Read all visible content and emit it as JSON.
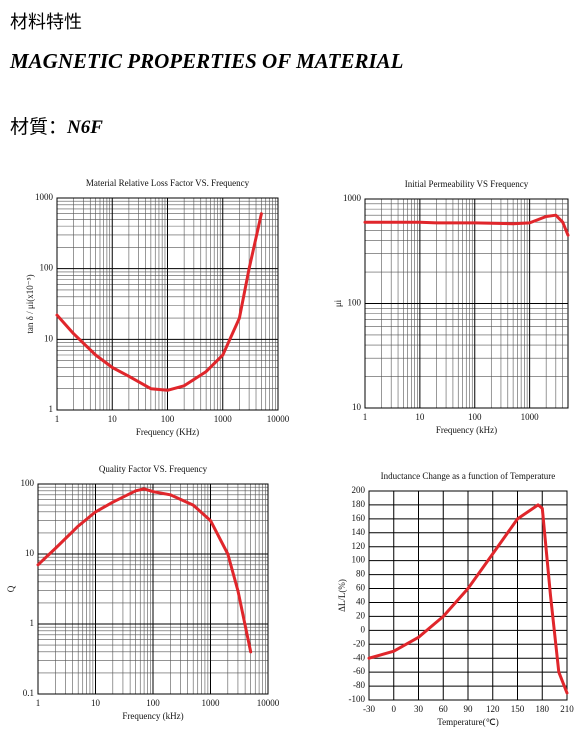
{
  "header": {
    "chinese_title": "材料特性",
    "title": "MAGNETIC PROPERTIES OF MATERIAL",
    "material_label": "材質：",
    "material": "N6F"
  },
  "chart_data": [
    {
      "type": "line",
      "title": "Material Relative Loss Factor VS. Frequency",
      "x_label": "Frequency (KHz)",
      "y_label": "tan δ / μi(x10⁻⁵)",
      "xscale": "log",
      "yscale": "log",
      "grid": true,
      "color": "#e0262b",
      "xlim": [
        1,
        10000
      ],
      "xticks": [
        1,
        10,
        100,
        1000,
        10000
      ],
      "ylim": [
        1,
        1000
      ],
      "yticks": [
        1,
        10,
        100,
        1000
      ],
      "x": [
        1,
        2,
        5,
        10,
        20,
        50,
        100,
        200,
        500,
        1000,
        2000,
        3000,
        5000
      ],
      "values": [
        22,
        12,
        6,
        4,
        3,
        2,
        1.9,
        2.2,
        3.5,
        6,
        20,
        100,
        600
      ]
    },
    {
      "type": "line",
      "title": "Initial Permeability VS Frequency",
      "x_label": "Frequency (kHz)",
      "y_label": "μi",
      "xscale": "log",
      "yscale": "log",
      "grid": true,
      "color": "#e0262b",
      "xlim": [
        1,
        5000
      ],
      "xticks": [
        1,
        10,
        100,
        1000
      ],
      "ylim": [
        10,
        1000
      ],
      "yticks": [
        10,
        100,
        1000
      ],
      "x": [
        1,
        10,
        20,
        100,
        500,
        1000,
        2000,
        3000,
        4000,
        5000
      ],
      "values": [
        600,
        600,
        590,
        590,
        580,
        590,
        680,
        700,
        600,
        450
      ]
    },
    {
      "type": "line",
      "title": "Quality Factor VS. Frequency",
      "x_label": "Frequency (kHz)",
      "y_label": "Q",
      "xscale": "log",
      "yscale": "log",
      "grid": true,
      "color": "#e0262b",
      "xlim": [
        1,
        10000
      ],
      "xticks": [
        1,
        10,
        100,
        1000,
        10000
      ],
      "ylim": [
        0.1,
        100
      ],
      "yticks": [
        0.1,
        1,
        10,
        100
      ],
      "x": [
        1,
        2,
        5,
        10,
        20,
        50,
        70,
        100,
        200,
        500,
        1000,
        2000,
        3000,
        5000
      ],
      "values": [
        7,
        12,
        25,
        40,
        55,
        80,
        85,
        78,
        70,
        50,
        30,
        10,
        3,
        0.4
      ]
    },
    {
      "type": "line",
      "title": "Inductance Change as a function of Temperature",
      "x_label": "Temperature(℃)",
      "y_label": "ΔL/L(%)",
      "xscale": "linear",
      "yscale": "linear",
      "grid": true,
      "color": "#e0262b",
      "xlim": [
        -30,
        210
      ],
      "xticks": [
        -30,
        0,
        30,
        60,
        90,
        120,
        150,
        180,
        210
      ],
      "ylim": [
        -100,
        200
      ],
      "yticks": [
        -100,
        -80,
        -60,
        -40,
        -20,
        0,
        20,
        40,
        60,
        80,
        100,
        120,
        140,
        160,
        180,
        200
      ],
      "x": [
        -30,
        0,
        30,
        60,
        90,
        120,
        150,
        175,
        180,
        190,
        200,
        210
      ],
      "values": [
        -40,
        -30,
        -10,
        20,
        60,
        110,
        160,
        180,
        175,
        50,
        -60,
        -90
      ]
    }
  ]
}
